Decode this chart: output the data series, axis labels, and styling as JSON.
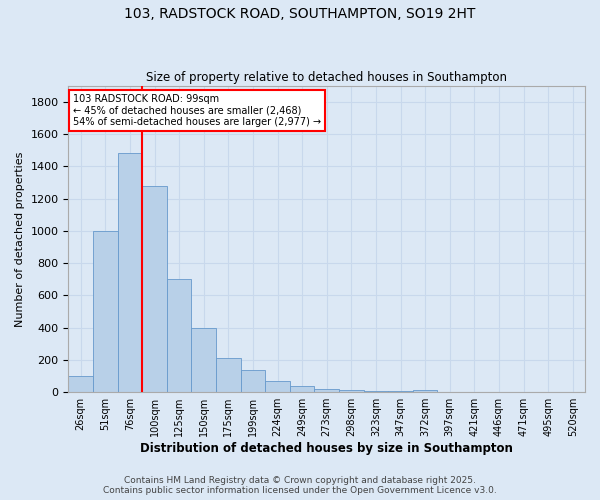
{
  "title_line1": "103, RADSTOCK ROAD, SOUTHAMPTON, SO19 2HT",
  "title_line2": "Size of property relative to detached houses in Southampton",
  "xlabel": "Distribution of detached houses by size in Southampton",
  "ylabel": "Number of detached properties",
  "categories": [
    "26sqm",
    "51sqm",
    "76sqm",
    "100sqm",
    "125sqm",
    "150sqm",
    "175sqm",
    "199sqm",
    "224sqm",
    "249sqm",
    "273sqm",
    "298sqm",
    "323sqm",
    "347sqm",
    "372sqm",
    "397sqm",
    "421sqm",
    "446sqm",
    "471sqm",
    "495sqm",
    "520sqm"
  ],
  "values": [
    100,
    1000,
    1480,
    1280,
    700,
    400,
    210,
    135,
    70,
    40,
    20,
    15,
    5,
    5,
    13,
    3,
    3,
    2,
    2,
    2,
    2
  ],
  "bar_color": "#b8d0e8",
  "bar_edge_color": "#6699cc",
  "red_line_x": 2.5,
  "annotation_text": "103 RADSTOCK ROAD: 99sqm\n← 45% of detached houses are smaller (2,468)\n54% of semi-detached houses are larger (2,977) →",
  "annotation_box_color": "white",
  "annotation_box_edge_color": "red",
  "red_line_color": "red",
  "ylim": [
    0,
    1900
  ],
  "yticks": [
    0,
    200,
    400,
    600,
    800,
    1000,
    1200,
    1400,
    1600,
    1800
  ],
  "grid_color": "#c8d8ec",
  "background_color": "#dce8f5",
  "footer_line1": "Contains HM Land Registry data © Crown copyright and database right 2025.",
  "footer_line2": "Contains public sector information licensed under the Open Government Licence v3.0."
}
